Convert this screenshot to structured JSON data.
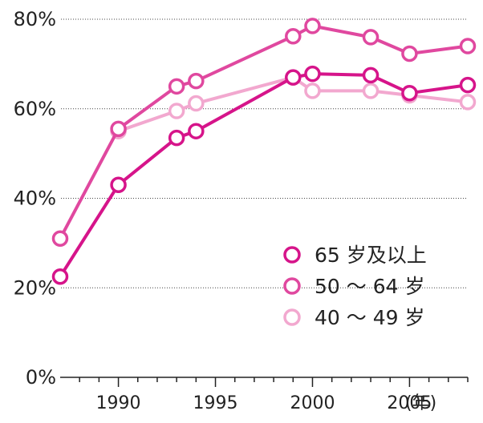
{
  "chart_data": {
    "type": "line",
    "title": "",
    "xlabel": "",
    "ylabel": "",
    "x_unit_label": "(年)",
    "xlim": [
      1987,
      2008
    ],
    "ylim": [
      0,
      80
    ],
    "x_ticks": [
      {
        "value": 1990,
        "label": "1990"
      },
      {
        "value": 1995,
        "label": "1995"
      },
      {
        "value": 2000,
        "label": "2000"
      },
      {
        "value": 2005,
        "label": "2005"
      }
    ],
    "y_ticks": [
      {
        "value": 0,
        "label": "0%"
      },
      {
        "value": 20,
        "label": "20%"
      },
      {
        "value": 40,
        "label": "40%"
      },
      {
        "value": 60,
        "label": "60%"
      },
      {
        "value": 80,
        "label": "80%"
      }
    ],
    "grid": true,
    "legend_position": "bottom-right",
    "series": [
      {
        "name": "65 岁及以上",
        "color": "#d6148a",
        "x": [
          1987,
          1990,
          1993,
          1994,
          1999,
          2000,
          2003,
          2005,
          2008
        ],
        "values": [
          22.5,
          43,
          53.5,
          55,
          67,
          67.8,
          67.5,
          63.5,
          65.3
        ]
      },
      {
        "name": "50 ～ 64 岁",
        "color": "#e0489f",
        "x": [
          1987,
          1990,
          1993,
          1994,
          1999,
          2000,
          2003,
          2005,
          2008
        ],
        "values": [
          31,
          55.5,
          65,
          66.2,
          76.2,
          78.5,
          76,
          72.3,
          74
        ]
      },
      {
        "name": "40 ～ 49 岁",
        "color": "#f2a8cf",
        "x": [
          1990,
          1993,
          1994,
          1999,
          2000,
          2003,
          2005,
          2008
        ],
        "values": [
          55,
          59.5,
          61.2,
          67,
          64,
          64,
          63,
          61.5
        ]
      }
    ]
  }
}
